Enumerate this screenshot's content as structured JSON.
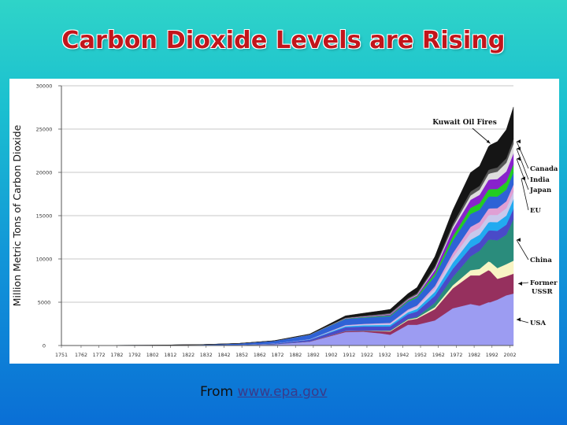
{
  "slide": {
    "title": "Carbon Dioxide Levels are Rising",
    "source_prefix": "From ",
    "source_link": "www.epa.gov"
  },
  "colors": {
    "title": "#c2151b",
    "bg_top": "#2fd4c8",
    "bg_bottom": "#0a6fd6"
  },
  "chart_data": {
    "type": "area",
    "stacked": true,
    "title": "",
    "ylabel": "Million Metric Tons of Carbon Dioxide",
    "xlabel": "",
    "ylim": [
      0,
      30000
    ],
    "xlim": [
      1751,
      2004
    ],
    "grid": "horizontal",
    "y_ticks": [
      0,
      5000,
      10000,
      15000,
      20000,
      25000,
      30000
    ],
    "y_tick_labels": [
      "0",
      "5000",
      "10000",
      "15000",
      "20000",
      "25000",
      "30000"
    ],
    "x_ticks": [
      1751,
      1762,
      1772,
      1782,
      1792,
      1802,
      1812,
      1822,
      1832,
      1842,
      1852,
      1862,
      1872,
      1882,
      1892,
      1902,
      1912,
      1922,
      1932,
      1942,
      1952,
      1962,
      1972,
      1982,
      1992,
      2002
    ],
    "x_tick_labels": [
      "1751",
      "1762",
      "1772",
      "1782",
      "1792",
      "1802",
      "1812",
      "1822",
      "1832",
      "1842",
      "1852",
      "1862",
      "1872",
      "1882",
      "1892",
      "1902",
      "1912",
      "1922",
      "1932",
      "1942",
      "1952",
      "1962",
      "1972",
      "1982",
      "1992",
      "2002"
    ],
    "x": [
      1751,
      1800,
      1830,
      1850,
      1870,
      1890,
      1910,
      1920,
      1930,
      1935,
      1945,
      1950,
      1960,
      1970,
      1980,
      1985,
      1990,
      1991,
      1995,
      2000,
      2004
    ],
    "series": [
      {
        "name": "USA",
        "color": "#9c9cf2",
        "values": [
          0,
          0,
          10,
          50,
          150,
          450,
          1550,
          1600,
          1400,
          1250,
          2400,
          2400,
          2900,
          4300,
          4800,
          4600,
          5000,
          5000,
          5300,
          5800,
          6000
        ]
      },
      {
        "name": "Former USSR",
        "color": "#96305e",
        "values": [
          0,
          0,
          0,
          0,
          5,
          30,
          120,
          100,
          250,
          380,
          520,
          700,
          1300,
          2300,
          3300,
          3500,
          3700,
          3600,
          2400,
          2200,
          2300
        ]
      },
      {
        "name": "",
        "color": "#f8f4c4",
        "values": [
          0,
          0,
          0,
          0,
          0,
          0,
          10,
          20,
          40,
          60,
          90,
          110,
          230,
          350,
          600,
          750,
          1000,
          1050,
          1250,
          1400,
          1500
        ]
      },
      {
        "name": "China",
        "color": "#2a8c7c",
        "values": [
          0,
          0,
          0,
          0,
          0,
          0,
          10,
          20,
          40,
          60,
          90,
          110,
          520,
          950,
          1600,
          2100,
          2500,
          2600,
          3200,
          3400,
          4800
        ]
      },
      {
        "name": "",
        "color": "#4a4ac8",
        "values": [
          0,
          0,
          10,
          20,
          60,
          180,
          420,
          450,
          460,
          450,
          520,
          620,
          800,
          950,
          1000,
          960,
          1050,
          1060,
          1100,
          1150,
          1200
        ]
      },
      {
        "name": "",
        "color": "#22aaf0",
        "values": [
          0,
          0,
          0,
          0,
          10,
          40,
          120,
          150,
          180,
          180,
          220,
          280,
          450,
          700,
          900,
          880,
          950,
          960,
          1000,
          1050,
          1100
        ]
      },
      {
        "name": "",
        "color": "#c8c8ec",
        "values": [
          0,
          0,
          0,
          0,
          10,
          30,
          90,
          110,
          140,
          150,
          200,
          250,
          380,
          600,
          800,
          780,
          820,
          820,
          830,
          850,
          870
        ]
      },
      {
        "name": "",
        "color": "#e0a0d4",
        "values": [
          0,
          0,
          0,
          0,
          0,
          10,
          40,
          50,
          70,
          80,
          120,
          160,
          280,
          500,
          700,
          700,
          760,
          760,
          780,
          800,
          820
        ]
      },
      {
        "name": "EU",
        "color": "#2f62d6",
        "values": [
          3,
          35,
          90,
          170,
          300,
          500,
          700,
          720,
          760,
          780,
          900,
          900,
          1150,
          1450,
          1500,
          1400,
          1400,
          1380,
          1350,
          1350,
          1400
        ]
      },
      {
        "name": "",
        "color": "#22cc22",
        "values": [
          0,
          0,
          0,
          0,
          0,
          10,
          40,
          50,
          80,
          90,
          120,
          150,
          300,
          500,
          700,
          750,
          820,
          840,
          870,
          900,
          950
        ]
      },
      {
        "name": "Japan",
        "color": "#8822cc",
        "values": [
          0,
          0,
          0,
          0,
          0,
          5,
          40,
          60,
          80,
          120,
          100,
          120,
          420,
          800,
          930,
          980,
          1100,
          1110,
          1150,
          1200,
          1250
        ]
      },
      {
        "name": "India",
        "color": "#dddddd",
        "values": [
          0,
          0,
          0,
          0,
          0,
          5,
          20,
          30,
          40,
          50,
          60,
          90,
          200,
          300,
          500,
          600,
          700,
          720,
          850,
          1000,
          1100
        ]
      },
      {
        "name": "Canada",
        "color": "#555555",
        "values": [
          0,
          0,
          0,
          0,
          5,
          20,
          60,
          80,
          100,
          110,
          140,
          160,
          240,
          330,
          450,
          430,
          460,
          460,
          480,
          530,
          560
        ]
      },
      {
        "name": "",
        "color": "#151515",
        "values": [
          0,
          0,
          5,
          10,
          20,
          60,
          220,
          300,
          380,
          420,
          520,
          650,
          1100,
          1600,
          2200,
          2300,
          2700,
          2800,
          3000,
          3300,
          3700
        ]
      }
    ],
    "annotations": [
      {
        "text": "Kuwait Oil Fires",
        "x": 1991
      }
    ],
    "legend_placement": "right (labels with arrows)"
  }
}
